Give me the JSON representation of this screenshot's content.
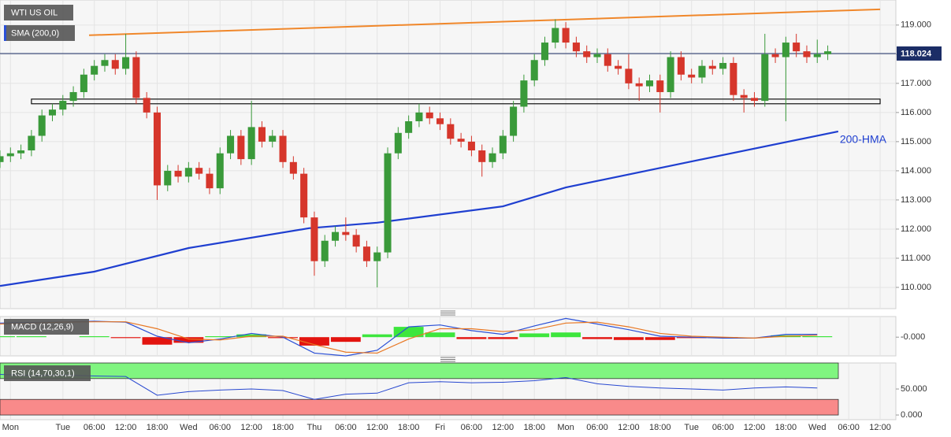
{
  "chart_data": [
    {
      "type": "candlestick",
      "title": "WTI US OIL",
      "indicator": "SMA (200,0)",
      "x": [
        -12,
        -10,
        -8,
        -6,
        -4,
        -2,
        0,
        2,
        4,
        6,
        8,
        10,
        12,
        14,
        16,
        18,
        20,
        22,
        24,
        26,
        28,
        30,
        32,
        34,
        36,
        38,
        40,
        42,
        44,
        46,
        48,
        50,
        52,
        54,
        56,
        58,
        60,
        62,
        64,
        66,
        68,
        70,
        72,
        74,
        76,
        78,
        80,
        82,
        84,
        86,
        88,
        90,
        92,
        94,
        96,
        98,
        100,
        102,
        104,
        106,
        108,
        110,
        112,
        114,
        116,
        118,
        120,
        122,
        124,
        126,
        128,
        130,
        132,
        134,
        136,
        138,
        140,
        142,
        144,
        146
      ],
      "open": [
        114.3,
        114.5,
        114.6,
        114.7,
        115.2,
        115.9,
        116.1,
        116.4,
        116.7,
        117.3,
        117.6,
        117.8,
        117.5,
        117.9,
        116.5,
        116.0,
        113.5,
        114.0,
        113.8,
        114.1,
        113.9,
        113.4,
        114.6,
        115.2,
        114.4,
        115.5,
        115.0,
        115.2,
        114.3,
        113.9,
        112.4,
        110.9,
        111.6,
        111.9,
        111.8,
        111.4,
        110.9,
        111.2,
        114.6,
        115.3,
        115.7,
        116.0,
        115.8,
        115.6,
        115.1,
        115.0,
        114.7,
        114.3,
        114.6,
        115.2,
        116.2,
        117.1,
        117.8,
        118.4,
        118.9,
        118.4,
        118.1,
        117.9,
        118.0,
        117.6,
        117.5,
        117.0,
        116.9,
        117.1,
        116.7,
        117.9,
        117.3,
        117.2,
        117.6,
        117.5,
        117.7,
        116.6,
        116.5,
        116.4,
        118.0,
        117.9,
        118.4,
        118.1,
        117.9,
        118.0
      ],
      "high": [
        114.7,
        114.8,
        114.9,
        115.4,
        116.1,
        116.3,
        116.6,
        116.9,
        117.5,
        117.8,
        118.0,
        118.0,
        118.7,
        118.1,
        116.7,
        116.2,
        114.2,
        114.2,
        114.3,
        114.3,
        114.1,
        114.8,
        115.4,
        115.4,
        116.4,
        115.7,
        115.4,
        115.4,
        114.5,
        114.1,
        112.6,
        111.8,
        112.1,
        112.4,
        112.0,
        111.6,
        111.4,
        114.8,
        115.5,
        115.9,
        116.3,
        116.2,
        116.0,
        115.8,
        115.3,
        115.2,
        114.9,
        114.8,
        115.4,
        116.4,
        117.3,
        118.0,
        118.6,
        119.2,
        119.1,
        118.6,
        118.3,
        118.2,
        118.2,
        117.8,
        118.0,
        117.2,
        117.3,
        117.3,
        118.1,
        118.1,
        117.5,
        117.8,
        117.8,
        117.9,
        117.9,
        116.8,
        116.7,
        118.7,
        118.2,
        118.6,
        118.7,
        118.3,
        118.5,
        118.3
      ],
      "low": [
        114.1,
        114.3,
        114.4,
        114.5,
        115.0,
        115.7,
        115.9,
        116.2,
        116.5,
        117.1,
        117.4,
        117.3,
        117.3,
        116.3,
        115.8,
        113.0,
        113.3,
        113.6,
        113.6,
        113.7,
        113.2,
        113.2,
        114.4,
        114.2,
        114.2,
        114.8,
        114.8,
        114.1,
        113.7,
        112.2,
        110.4,
        110.7,
        111.4,
        111.6,
        111.2,
        110.7,
        110.0,
        111.0,
        114.4,
        115.1,
        115.5,
        115.6,
        115.4,
        114.9,
        114.8,
        114.5,
        113.8,
        114.1,
        114.4,
        115.0,
        116.0,
        116.9,
        117.6,
        118.2,
        118.2,
        117.9,
        117.7,
        117.7,
        117.4,
        117.3,
        116.8,
        116.4,
        116.7,
        116.0,
        116.5,
        117.1,
        117.0,
        117.0,
        117.3,
        117.3,
        116.4,
        116.0,
        116.2,
        116.2,
        117.7,
        115.7,
        117.9,
        117.7,
        117.7,
        117.8
      ],
      "close": [
        114.5,
        114.6,
        114.7,
        115.2,
        115.9,
        116.1,
        116.4,
        116.7,
        117.3,
        117.6,
        117.8,
        117.5,
        117.9,
        116.5,
        116.0,
        113.5,
        114.0,
        113.8,
        114.1,
        113.9,
        113.4,
        114.6,
        115.2,
        114.4,
        115.5,
        115.0,
        115.2,
        114.3,
        113.9,
        112.4,
        110.9,
        111.6,
        111.9,
        111.8,
        111.4,
        110.9,
        111.2,
        114.6,
        115.3,
        115.7,
        116.0,
        115.8,
        115.6,
        115.1,
        115.0,
        114.7,
        114.3,
        114.6,
        115.2,
        116.2,
        117.1,
        117.8,
        118.4,
        118.9,
        118.4,
        118.1,
        117.9,
        118.0,
        117.6,
        117.5,
        117.0,
        116.9,
        117.1,
        116.7,
        117.9,
        117.3,
        117.2,
        117.6,
        117.5,
        117.7,
        116.6,
        116.5,
        116.4,
        118.0,
        117.9,
        118.4,
        118.1,
        117.9,
        118.0,
        118.1
      ],
      "up_color": "#3a9a3a",
      "down_color": "#d6362b",
      "xlim": [
        -12,
        159
      ],
      "ylim": [
        109.27,
        119.86
      ],
      "xticks": [
        {
          "value": -10,
          "label": "Mon"
        },
        {
          "value": 0,
          "label": "Tue"
        },
        {
          "value": 6,
          "label": "06:00"
        },
        {
          "value": 12,
          "label": "12:00"
        },
        {
          "value": 18,
          "label": "18:00"
        },
        {
          "value": 24,
          "label": "Wed"
        },
        {
          "value": 30,
          "label": "06:00"
        },
        {
          "value": 36,
          "label": "12:00"
        },
        {
          "value": 42,
          "label": "18:00"
        },
        {
          "value": 48,
          "label": "Thu"
        },
        {
          "value": 54,
          "label": "06:00"
        },
        {
          "value": 60,
          "label": "12:00"
        },
        {
          "value": 66,
          "label": "18:00"
        },
        {
          "value": 72,
          "label": "Fri"
        },
        {
          "value": 78,
          "label": "06:00"
        },
        {
          "value": 84,
          "label": "12:00"
        },
        {
          "value": 90,
          "label": "18:00"
        },
        {
          "value": 96,
          "label": "Mon"
        },
        {
          "value": 102,
          "label": "06:00"
        },
        {
          "value": 108,
          "label": "12:00"
        },
        {
          "value": 114,
          "label": "18:00"
        },
        {
          "value": 120,
          "label": "Tue"
        },
        {
          "value": 126,
          "label": "06:00"
        },
        {
          "value": 132,
          "label": "12:00"
        },
        {
          "value": 138,
          "label": "18:00"
        },
        {
          "value": 144,
          "label": "Wed"
        },
        {
          "value": 150,
          "label": "06:00"
        },
        {
          "value": 156,
          "label": "12:00"
        }
      ],
      "yticks": [
        {
          "value": 110,
          "label": "110.000"
        },
        {
          "value": 111,
          "label": "111.000"
        },
        {
          "value": 112,
          "label": "112.000"
        },
        {
          "value": 113,
          "label": "113.000"
        },
        {
          "value": 114,
          "label": "114.000"
        },
        {
          "value": 115,
          "label": "115.000"
        },
        {
          "value": 116,
          "label": "116.000"
        },
        {
          "value": 117,
          "label": "117.000"
        },
        {
          "value": 118,
          "label": "118.000"
        },
        {
          "value": 119,
          "label": "119.000"
        }
      ],
      "grid": true,
      "last_price": 118.024,
      "last_price_color": "#1b2d66",
      "series": [
        {
          "name": "200-HMA",
          "color": "#1f3fd0",
          "x": [
            -12,
            6,
            24,
            47,
            60,
            84,
            96,
            120,
            148
          ],
          "values": [
            110.05,
            110.54,
            111.35,
            112.03,
            112.22,
            112.78,
            113.43,
            114.32,
            115.35
          ]
        }
      ],
      "trendline": {
        "color": "#f0872a",
        "x": [
          5,
          156
        ],
        "values": [
          118.65,
          119.54
        ]
      },
      "zone": {
        "x": [
          -6,
          156
        ],
        "values": [
          116.46,
          116.3
        ]
      }
    },
    {
      "type": "macd",
      "title": "MACD (12,26,9)",
      "x": [
        -12,
        -6,
        0,
        6,
        12,
        18,
        24,
        30,
        36,
        42,
        48,
        54,
        60,
        66,
        72,
        78,
        84,
        90,
        96,
        102,
        108,
        114,
        120,
        126,
        132,
        138,
        144
      ],
      "ylim": [
        -1.0,
        1.1
      ],
      "yticks": [
        {
          "value": 0,
          "label": "-0.000"
        }
      ],
      "histogram": {
        "up_color": "#3de63d",
        "down_color": "#e3140f",
        "values": [
          0.05,
          0.05,
          0,
          0.05,
          -0.05,
          -0.4,
          -0.3,
          0.05,
          0.15,
          -0.05,
          -0.45,
          -0.25,
          0.15,
          0.55,
          0.25,
          -0.1,
          -0.1,
          0.2,
          0.25,
          -0.1,
          -0.15,
          -0.15,
          -0.05,
          -0.05,
          0,
          0.1,
          0.05
        ]
      },
      "series": [
        {
          "color": "#2a4fd6",
          "values": [
            0.75,
            0.78,
            0.8,
            0.85,
            0.8,
            0.05,
            -0.3,
            -0.1,
            0.2,
            0,
            -0.85,
            -1.0,
            -0.7,
            0.55,
            0.65,
            0.35,
            0.15,
            0.6,
            1.0,
            0.7,
            0.4,
            0.05,
            0,
            -0.05,
            -0.05,
            0.15,
            0.15
          ]
        },
        {
          "color": "#e87722",
          "values": [
            0.7,
            0.75,
            0.8,
            0.82,
            0.82,
            0.45,
            -0.1,
            -0.15,
            0.05,
            0.05,
            -0.4,
            -0.8,
            -0.85,
            -0.1,
            0.45,
            0.45,
            0.3,
            0.4,
            0.75,
            0.8,
            0.55,
            0.2,
            0.05,
            0,
            -0.05,
            0.05,
            0.1
          ]
        }
      ]
    },
    {
      "type": "rsi",
      "title": "RSI (14,70,30,1)",
      "x": [
        -12,
        -6,
        0,
        6,
        12,
        18,
        24,
        30,
        36,
        42,
        48,
        54,
        60,
        66,
        72,
        78,
        84,
        90,
        96,
        102,
        108,
        114,
        120,
        126,
        132,
        138,
        144
      ],
      "values": [
        78,
        76,
        77,
        75,
        74,
        38,
        45,
        48,
        50,
        47,
        30,
        40,
        42,
        62,
        64,
        62,
        63,
        66,
        72,
        60,
        55,
        52,
        50,
        48,
        52,
        54,
        52
      ],
      "color": "#2848d0",
      "ylim": [
        -9,
        100
      ],
      "yticks": [
        {
          "value": 50,
          "label": "50.000"
        },
        {
          "value": 0,
          "label": "0.000"
        }
      ],
      "bands": [
        {
          "from": 70,
          "to": 100,
          "color": "#80f580"
        },
        {
          "from": 0,
          "to": 30,
          "color": "#f98a8a"
        }
      ]
    }
  ]
}
